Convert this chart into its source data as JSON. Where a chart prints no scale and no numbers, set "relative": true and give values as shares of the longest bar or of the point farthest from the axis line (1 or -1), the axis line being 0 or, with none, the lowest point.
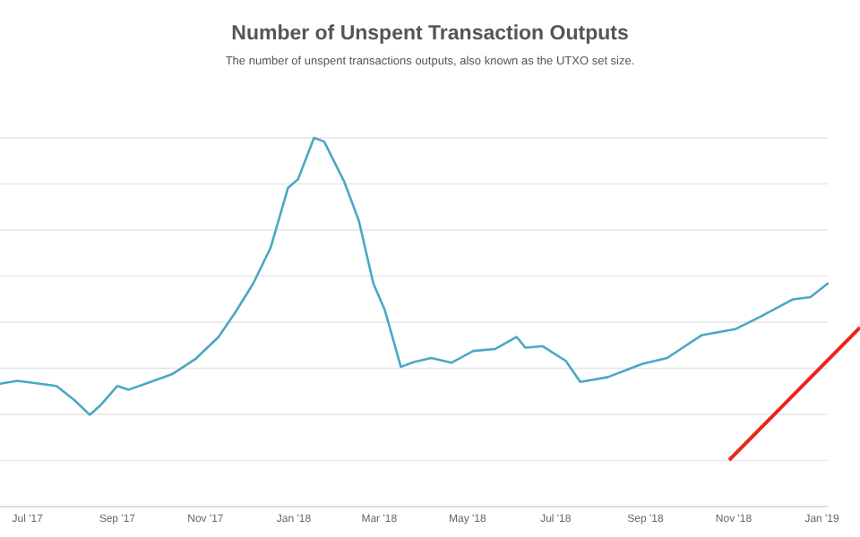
{
  "chart_data": {
    "type": "line",
    "title": "Number of Unspent Transaction Outputs",
    "subtitle": "The number of unspent transactions outputs, also known as the UTXO set size.",
    "relative": true,
    "grid": "y",
    "marker": "none",
    "line_style": "solid",
    "xlim": [
      "2017-06-12",
      "2019-01-05"
    ],
    "xticks": [
      {
        "value": "2017-07-01",
        "label": "Jul '17"
      },
      {
        "value": "2017-09-01",
        "label": "Sep '17"
      },
      {
        "value": "2017-11-01",
        "label": "Nov '17"
      },
      {
        "value": "2018-01-01",
        "label": "Jan '18"
      },
      {
        "value": "2018-03-01",
        "label": "Mar '18"
      },
      {
        "value": "2018-05-01",
        "label": "May '18"
      },
      {
        "value": "2018-07-01",
        "label": "Jul '18"
      },
      {
        "value": "2018-09-01",
        "label": "Sep '18"
      },
      {
        "value": "2018-11-01",
        "label": "Nov '18"
      },
      {
        "value": "2019-01-01",
        "label": "Jan '19"
      }
    ],
    "x": [
      "2017-06-12",
      "2017-06-24",
      "2017-07-06",
      "2017-07-21",
      "2017-08-02",
      "2017-08-13",
      "2017-08-20",
      "2017-09-01",
      "2017-09-09",
      "2017-09-24",
      "2017-10-09",
      "2017-10-25",
      "2017-11-10",
      "2017-11-22",
      "2017-12-04",
      "2017-12-16",
      "2017-12-28",
      "2018-01-04",
      "2018-01-15",
      "2018-01-22",
      "2018-02-05",
      "2018-02-15",
      "2018-02-25",
      "2018-03-05",
      "2018-03-16",
      "2018-03-25",
      "2018-04-06",
      "2018-04-20",
      "2018-05-05",
      "2018-05-20",
      "2018-06-04",
      "2018-06-10",
      "2018-06-22",
      "2018-07-08",
      "2018-07-18",
      "2018-08-06",
      "2018-08-30",
      "2018-09-16",
      "2018-10-10",
      "2018-11-02",
      "2018-11-20",
      "2018-12-12",
      "2018-12-24",
      "2019-01-05"
    ],
    "series": [
      {
        "color": "#4aa8c2",
        "values": [
          0.333,
          0.341,
          0.335,
          0.327,
          0.29,
          0.249,
          0.273,
          0.327,
          0.317,
          0.338,
          0.359,
          0.4,
          0.46,
          0.529,
          0.605,
          0.702,
          0.864,
          0.888,
          1,
          0.99,
          0.88,
          0.775,
          0.605,
          0.532,
          0.379,
          0.392,
          0.403,
          0.39,
          0.422,
          0.427,
          0.46,
          0.431,
          0.435,
          0.395,
          0.338,
          0.351,
          0.387,
          0.403,
          0.465,
          0.481,
          0.516,
          0.562,
          0.568,
          0.605
        ]
      }
    ]
  }
}
